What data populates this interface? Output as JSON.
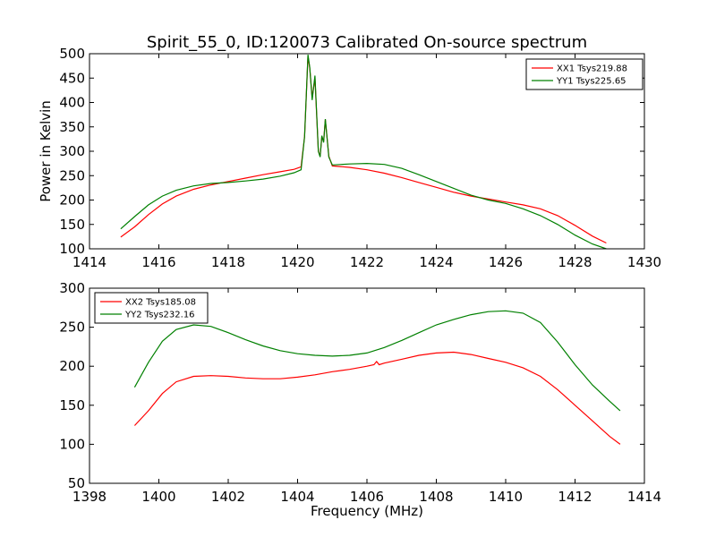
{
  "figure": {
    "title": "Spirit_55_0, ID:120073 Calibrated On-source spectrum"
  },
  "chart_data": [
    {
      "type": "line",
      "title": "Spirit_55_0, ID:120073 Calibrated On-source spectrum",
      "xlabel": "",
      "ylabel": "Power in Kelvin",
      "xlim": [
        1414,
        1430
      ],
      "ylim": [
        100,
        500
      ],
      "xticks": [
        1414,
        1416,
        1418,
        1420,
        1422,
        1424,
        1426,
        1428,
        1430
      ],
      "yticks": [
        100,
        150,
        200,
        250,
        300,
        350,
        400,
        450,
        500
      ],
      "legend_position": "top-right",
      "grid": false,
      "series": [
        {
          "name": "XX1 Tsys219.88",
          "color": "#ff0000",
          "x": [
            1414.9,
            1415.3,
            1415.7,
            1416.1,
            1416.5,
            1417.0,
            1417.5,
            1418.0,
            1418.5,
            1419.0,
            1419.5,
            1419.9,
            1420.1,
            1420.2,
            1420.3,
            1420.35,
            1420.42,
            1420.5,
            1420.6,
            1420.65,
            1420.7,
            1420.75,
            1420.8,
            1420.9,
            1421.0,
            1421.5,
            1422.0,
            1422.5,
            1423.0,
            1423.5,
            1424.0,
            1424.5,
            1425.0,
            1425.5,
            1426.0,
            1426.5,
            1427.0,
            1427.5,
            1428.0,
            1428.5,
            1428.9
          ],
          "y": [
            124,
            145,
            170,
            192,
            208,
            222,
            231,
            238,
            245,
            252,
            258,
            263,
            268,
            330,
            495,
            470,
            410,
            450,
            300,
            290,
            330,
            320,
            365,
            290,
            270,
            267,
            262,
            255,
            246,
            236,
            226,
            216,
            208,
            202,
            196,
            190,
            182,
            168,
            148,
            126,
            112
          ]
        },
        {
          "name": "YY1 Tsys225.65",
          "color": "#008000",
          "x": [
            1414.9,
            1415.3,
            1415.7,
            1416.1,
            1416.5,
            1417.0,
            1417.5,
            1418.0,
            1418.5,
            1419.0,
            1419.5,
            1419.9,
            1420.1,
            1420.2,
            1420.3,
            1420.35,
            1420.42,
            1420.5,
            1420.6,
            1420.65,
            1420.7,
            1420.75,
            1420.8,
            1420.9,
            1421.0,
            1421.5,
            1422.0,
            1422.5,
            1423.0,
            1423.5,
            1424.0,
            1424.5,
            1425.0,
            1425.5,
            1426.0,
            1426.5,
            1427.0,
            1427.5,
            1428.0,
            1428.5,
            1428.9
          ],
          "y": [
            141,
            166,
            190,
            208,
            220,
            229,
            234,
            236,
            239,
            243,
            249,
            256,
            262,
            330,
            498,
            472,
            405,
            455,
            300,
            288,
            332,
            318,
            366,
            288,
            272,
            274,
            275,
            273,
            265,
            252,
            238,
            224,
            210,
            200,
            193,
            182,
            168,
            150,
            128,
            110,
            100
          ]
        }
      ]
    },
    {
      "type": "line",
      "title": "",
      "xlabel": "Frequency (MHz)",
      "ylabel": "",
      "xlim": [
        1398,
        1414
      ],
      "ylim": [
        50,
        300
      ],
      "xticks": [
        1398,
        1400,
        1402,
        1404,
        1406,
        1408,
        1410,
        1412,
        1414
      ],
      "yticks": [
        50,
        100,
        150,
        200,
        250,
        300
      ],
      "legend_position": "top-left",
      "grid": false,
      "series": [
        {
          "name": "XX2 Tsys185.08",
          "color": "#ff0000",
          "x": [
            1399.3,
            1399.7,
            1400.1,
            1400.5,
            1401.0,
            1401.5,
            1402.0,
            1402.5,
            1403.0,
            1403.5,
            1404.0,
            1404.5,
            1405.0,
            1405.5,
            1406.0,
            1406.2,
            1406.28,
            1406.35,
            1406.5,
            1407.0,
            1407.5,
            1408.0,
            1408.5,
            1409.0,
            1409.5,
            1410.0,
            1410.5,
            1411.0,
            1411.5,
            1412.0,
            1412.5,
            1413.0,
            1413.3
          ],
          "y": [
            124,
            143,
            165,
            180,
            187,
            188,
            187,
            185,
            184,
            184,
            186,
            189,
            193,
            196,
            200,
            202,
            206,
            202,
            204,
            209,
            214,
            217,
            218,
            215,
            210,
            205,
            198,
            187,
            170,
            150,
            130,
            110,
            100
          ]
        },
        {
          "name": "YY2 Tsys232.16",
          "color": "#008000",
          "x": [
            1399.3,
            1399.7,
            1400.1,
            1400.5,
            1401.0,
            1401.5,
            1402.0,
            1402.5,
            1403.0,
            1403.5,
            1404.0,
            1404.5,
            1405.0,
            1405.5,
            1406.0,
            1406.5,
            1407.0,
            1407.5,
            1408.0,
            1408.5,
            1409.0,
            1409.5,
            1410.0,
            1410.5,
            1411.0,
            1411.5,
            1412.0,
            1412.5,
            1413.0,
            1413.3
          ],
          "y": [
            173,
            205,
            232,
            247,
            253,
            251,
            243,
            234,
            226,
            220,
            216,
            214,
            213,
            214,
            217,
            224,
            233,
            243,
            253,
            260,
            266,
            270,
            271,
            268,
            256,
            231,
            202,
            176,
            155,
            143
          ]
        }
      ]
    }
  ]
}
